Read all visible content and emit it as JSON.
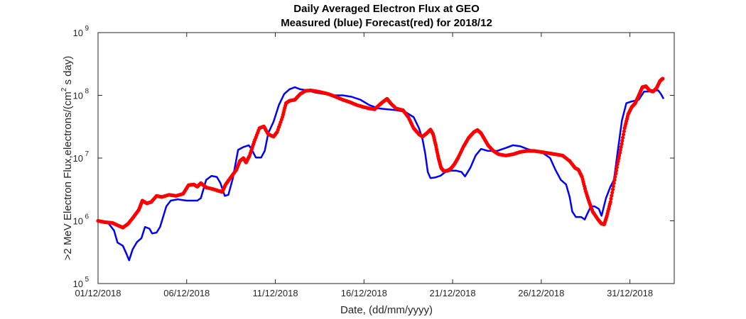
{
  "chart_data": {
    "type": "line",
    "title": [
      "Daily Averaged Electron Flux at GEO",
      "Measured (blue) Forecast(red) for 2018/12"
    ],
    "xlabel": "Date, (dd/mm/yyyy)",
    "ylabel": ">2 MeV Electron Flux,electrons/(cm",
    "ylabel_sup": "2",
    "ylabel_tail": " s day)",
    "x_unit": "days",
    "xlim": [
      0,
      32.5
    ],
    "ylim": [
      100000,
      1000000000
    ],
    "y_scale": "log",
    "grid": false,
    "x_ticks": [
      {
        "value": 0,
        "label": "01/12/2018"
      },
      {
        "value": 5,
        "label": "06/12/2018"
      },
      {
        "value": 10,
        "label": "11/12/2018"
      },
      {
        "value": 15,
        "label": "16/12/2018"
      },
      {
        "value": 20,
        "label": "21/12/2018"
      },
      {
        "value": 25,
        "label": "26/12/2018"
      },
      {
        "value": 30,
        "label": "31/12/2018"
      }
    ],
    "y_ticks": [
      {
        "value": 100000,
        "base": "10",
        "exp": "5"
      },
      {
        "value": 1000000,
        "base": "10",
        "exp": "6"
      },
      {
        "value": 10000000,
        "base": "10",
        "exp": "7"
      },
      {
        "value": 100000000,
        "base": "10",
        "exp": "8"
      },
      {
        "value": 1000000000,
        "base": "10",
        "exp": "9"
      }
    ],
    "series": [
      {
        "name": "Measured",
        "color": "#0000ff",
        "style": "line",
        "points": [
          [
            0,
            1000000.0
          ],
          [
            0.6,
            900000.0
          ],
          [
            0.9,
            700000.0
          ],
          [
            1.1,
            450000.0
          ],
          [
            1.4,
            400000.0
          ],
          [
            1.6,
            300000.0
          ],
          [
            1.75,
            235000.0
          ],
          [
            1.95,
            350000.0
          ],
          [
            2.2,
            460000.0
          ],
          [
            2.45,
            530000.0
          ],
          [
            2.65,
            800000.0
          ],
          [
            2.9,
            750000.0
          ],
          [
            3.05,
            630000.0
          ],
          [
            3.3,
            650000.0
          ],
          [
            3.5,
            800000.0
          ],
          [
            3.85,
            1700000.0
          ],
          [
            4.1,
            2100000.0
          ],
          [
            4.5,
            2200000.0
          ],
          [
            5.0,
            2100000.0
          ],
          [
            5.6,
            2100000.0
          ],
          [
            5.8,
            2300000.0
          ],
          [
            6.1,
            4500000.0
          ],
          [
            6.4,
            5200000.0
          ],
          [
            6.7,
            5000000.0
          ],
          [
            6.9,
            4000000.0
          ],
          [
            7.15,
            2500000.0
          ],
          [
            7.35,
            2600000.0
          ],
          [
            7.6,
            4700000.0
          ],
          [
            7.9,
            13500000.0
          ],
          [
            8.2,
            15000000.0
          ],
          [
            8.5,
            16000000.0
          ],
          [
            8.65,
            14000000.0
          ],
          [
            8.9,
            10200000.0
          ],
          [
            9.2,
            10200000.0
          ],
          [
            9.4,
            13000000.0
          ],
          [
            9.6,
            25000000.0
          ],
          [
            9.9,
            38000000.0
          ],
          [
            10.2,
            70000000.0
          ],
          [
            10.5,
            105000000.0
          ],
          [
            10.8,
            125000000.0
          ],
          [
            11.1,
            135000000.0
          ],
          [
            11.4,
            125000000.0
          ],
          [
            11.8,
            120000000.0
          ],
          [
            12.3,
            110000000.0
          ],
          [
            12.8,
            105000000.0
          ],
          [
            13.3,
            100000000.0
          ],
          [
            13.8,
            100000000.0
          ],
          [
            14.3,
            95000000.0
          ],
          [
            14.8,
            85000000.0
          ],
          [
            15.3,
            70000000.0
          ],
          [
            15.8,
            62000000.0
          ],
          [
            16.3,
            60000000.0
          ],
          [
            16.8,
            58000000.0
          ],
          [
            17.3,
            55000000.0
          ],
          [
            17.8,
            45000000.0
          ],
          [
            18.1,
            30000000.0
          ],
          [
            18.3,
            20000000.0
          ],
          [
            18.45,
            12000000.0
          ],
          [
            18.6,
            6000000.0
          ],
          [
            18.75,
            4800000.0
          ],
          [
            19.0,
            4900000.0
          ],
          [
            19.3,
            5200000.0
          ],
          [
            19.6,
            6000000.0
          ],
          [
            19.9,
            6300000.0
          ],
          [
            20.2,
            6300000.0
          ],
          [
            20.5,
            6000000.0
          ],
          [
            20.7,
            5100000.0
          ],
          [
            21.0,
            7000000.0
          ],
          [
            21.3,
            11000000.0
          ],
          [
            21.6,
            14000000.0
          ],
          [
            22.0,
            13000000.0
          ],
          [
            22.5,
            13000000.0
          ],
          [
            23.0,
            14500000.0
          ],
          [
            23.4,
            16000000.0
          ],
          [
            23.8,
            15500000.0
          ],
          [
            24.2,
            14000000.0
          ],
          [
            24.6,
            13000000.0
          ],
          [
            25.1,
            12000000.0
          ],
          [
            25.5,
            10000000.0
          ],
          [
            25.8,
            6500000.0
          ],
          [
            26.1,
            4500000.0
          ],
          [
            26.4,
            3800000.0
          ],
          [
            26.6,
            2400000.0
          ],
          [
            26.75,
            1400000.0
          ],
          [
            26.95,
            1150000.0
          ],
          [
            27.25,
            1150000.0
          ],
          [
            27.45,
            1050000.0
          ],
          [
            27.6,
            1300000.0
          ],
          [
            27.8,
            1700000.0
          ],
          [
            28.0,
            1700000.0
          ],
          [
            28.25,
            1550000.0
          ],
          [
            28.4,
            1200000.0
          ],
          [
            28.65,
            2300000.0
          ],
          [
            28.9,
            3500000.0
          ],
          [
            29.1,
            4500000.0
          ],
          [
            29.3,
            12000000.0
          ],
          [
            29.55,
            40000000.0
          ],
          [
            29.8,
            75000000.0
          ],
          [
            30.1,
            80000000.0
          ],
          [
            30.5,
            85000000.0
          ],
          [
            30.8,
            115000000.0
          ],
          [
            31.1,
            115000000.0
          ],
          [
            31.35,
            120000000.0
          ],
          [
            31.6,
            120000000.0
          ],
          [
            31.75,
            105000000.0
          ],
          [
            31.9,
            88000000.0
          ]
        ]
      },
      {
        "name": "Forecast",
        "color": "#ff0000",
        "style": "dots",
        "points": [
          [
            0,
            1000000.0
          ],
          [
            0.4,
            950000.0
          ],
          [
            0.8,
            930000.0
          ],
          [
            1.1,
            850000.0
          ],
          [
            1.4,
            780000.0
          ],
          [
            1.7,
            900000.0
          ],
          [
            2.0,
            1150000.0
          ],
          [
            2.3,
            1500000.0
          ],
          [
            2.5,
            2100000.0
          ],
          [
            2.75,
            1900000.0
          ],
          [
            3.0,
            2000000.0
          ],
          [
            3.3,
            2500000.0
          ],
          [
            3.6,
            2400000.0
          ],
          [
            4.0,
            2600000.0
          ],
          [
            4.4,
            2500000.0
          ],
          [
            4.8,
            2700000.0
          ],
          [
            5.1,
            3700000.0
          ],
          [
            5.4,
            3800000.0
          ],
          [
            5.6,
            3500000.0
          ],
          [
            5.8,
            4000000.0
          ],
          [
            6.1,
            3400000.0
          ],
          [
            6.5,
            3200000.0
          ],
          [
            6.8,
            3000000.0
          ],
          [
            7.0,
            2900000.0
          ],
          [
            7.2,
            3800000.0
          ],
          [
            7.5,
            5000000.0
          ],
          [
            7.8,
            6500000.0
          ],
          [
            8.0,
            9000000.0
          ],
          [
            8.2,
            10000000.0
          ],
          [
            8.35,
            8500000.0
          ],
          [
            8.55,
            11000000.0
          ],
          [
            8.8,
            18000000.0
          ],
          [
            9.1,
            30000000.0
          ],
          [
            9.35,
            32000000.0
          ],
          [
            9.6,
            24000000.0
          ],
          [
            9.9,
            22000000.0
          ],
          [
            10.1,
            26000000.0
          ],
          [
            10.4,
            45000000.0
          ],
          [
            10.6,
            75000000.0
          ],
          [
            10.8,
            82000000.0
          ],
          [
            11.1,
            85000000.0
          ],
          [
            11.4,
            105000000.0
          ],
          [
            11.7,
            118000000.0
          ],
          [
            12.0,
            120000000.0
          ],
          [
            12.4,
            115000000.0
          ],
          [
            12.7,
            110000000.0
          ],
          [
            13.0,
            105000000.0
          ],
          [
            13.4,
            95000000.0
          ],
          [
            13.8,
            85000000.0
          ],
          [
            14.2,
            78000000.0
          ],
          [
            14.6,
            70000000.0
          ],
          [
            15.0,
            65000000.0
          ],
          [
            15.3,
            62000000.0
          ],
          [
            15.6,
            60000000.0
          ],
          [
            15.9,
            72000000.0
          ],
          [
            16.1,
            80000000.0
          ],
          [
            16.3,
            88000000.0
          ],
          [
            16.5,
            75000000.0
          ],
          [
            16.8,
            62000000.0
          ],
          [
            17.2,
            58000000.0
          ],
          [
            17.5,
            45000000.0
          ],
          [
            17.8,
            30000000.0
          ],
          [
            18.1,
            24000000.0
          ],
          [
            18.3,
            22000000.0
          ],
          [
            18.55,
            25000000.0
          ],
          [
            18.75,
            28500000.0
          ],
          [
            18.9,
            24000000.0
          ],
          [
            19.05,
            16000000.0
          ],
          [
            19.2,
            10000000.0
          ],
          [
            19.35,
            7000000.0
          ],
          [
            19.5,
            6200000.0
          ],
          [
            19.7,
            6300000.0
          ],
          [
            19.9,
            6800000.0
          ],
          [
            20.1,
            8000000.0
          ],
          [
            20.3,
            10000000.0
          ],
          [
            20.6,
            15000000.0
          ],
          [
            20.9,
            21000000.0
          ],
          [
            21.2,
            26000000.0
          ],
          [
            21.4,
            28000000.0
          ],
          [
            21.6,
            25000000.0
          ],
          [
            21.8,
            20000000.0
          ],
          [
            22.0,
            16000000.0
          ],
          [
            22.3,
            13000000.0
          ],
          [
            22.6,
            11500000.0
          ],
          [
            23.0,
            11000000.0
          ],
          [
            23.4,
            11500000.0
          ],
          [
            23.8,
            12500000.0
          ],
          [
            24.2,
            13000000.0
          ],
          [
            24.6,
            13000000.0
          ],
          [
            25.0,
            12500000.0
          ],
          [
            25.4,
            12000000.0
          ],
          [
            25.8,
            11500000.0
          ],
          [
            26.2,
            11000000.0
          ],
          [
            26.6,
            9000000.0
          ],
          [
            26.9,
            7000000.0
          ],
          [
            27.1,
            6500000.0
          ],
          [
            27.3,
            5000000.0
          ],
          [
            27.5,
            3000000.0
          ],
          [
            27.7,
            2000000.0
          ],
          [
            27.9,
            1400000.0
          ],
          [
            28.2,
            1050000.0
          ],
          [
            28.4,
            900000.0
          ],
          [
            28.55,
            880000.0
          ],
          [
            28.7,
            1200000.0
          ],
          [
            28.9,
            2000000.0
          ],
          [
            29.1,
            4000000.0
          ],
          [
            29.3,
            8000000.0
          ],
          [
            29.5,
            15000000.0
          ],
          [
            29.7,
            30000000.0
          ],
          [
            29.9,
            50000000.0
          ],
          [
            30.1,
            65000000.0
          ],
          [
            30.3,
            75000000.0
          ],
          [
            30.5,
            100000000.0
          ],
          [
            30.7,
            135000000.0
          ],
          [
            30.9,
            140000000.0
          ],
          [
            31.1,
            120000000.0
          ],
          [
            31.3,
            115000000.0
          ],
          [
            31.5,
            130000000.0
          ],
          [
            31.7,
            170000000.0
          ],
          [
            31.85,
            185000000.0
          ]
        ]
      }
    ]
  }
}
